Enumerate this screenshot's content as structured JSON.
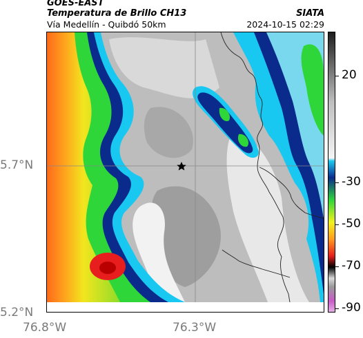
{
  "header": {
    "satellite": "GOES-EAST",
    "product": "Temperatura de Brillo CH13",
    "organization": "SIATA",
    "region": "Vía Medellín - Quibdó 50km",
    "datetime": "2024-10-15 02:29"
  },
  "map": {
    "lat_ticks": [
      {
        "label": "5.7°N",
        "value": 5.7
      },
      {
        "label": "5.2°N",
        "value": 5.2
      }
    ],
    "lon_ticks": [
      {
        "label": "76.8°W",
        "value": -76.8
      },
      {
        "label": "76.3°W",
        "value": -76.3
      }
    ],
    "marker": {
      "symbol": "star",
      "icon": "star-marker-icon"
    }
  },
  "colorbar": {
    "ticks": [
      {
        "label": "20",
        "value": 20
      },
      {
        "label": "-30",
        "value": -30
      },
      {
        "label": "-50",
        "value": -50
      },
      {
        "label": "-70",
        "value": -70
      },
      {
        "label": "-90",
        "value": -90
      }
    ],
    "colors": {
      "warm_top": "#1e1e1e",
      "gray_mid": "#bfbfbf",
      "cyan": "#19c8f0",
      "blue": "#0a2a8c",
      "green": "#2fd63a",
      "yellow": "#f2f21e",
      "red": "#e81e1e",
      "black": "#000000",
      "magenta": "#c85ac8"
    }
  }
}
